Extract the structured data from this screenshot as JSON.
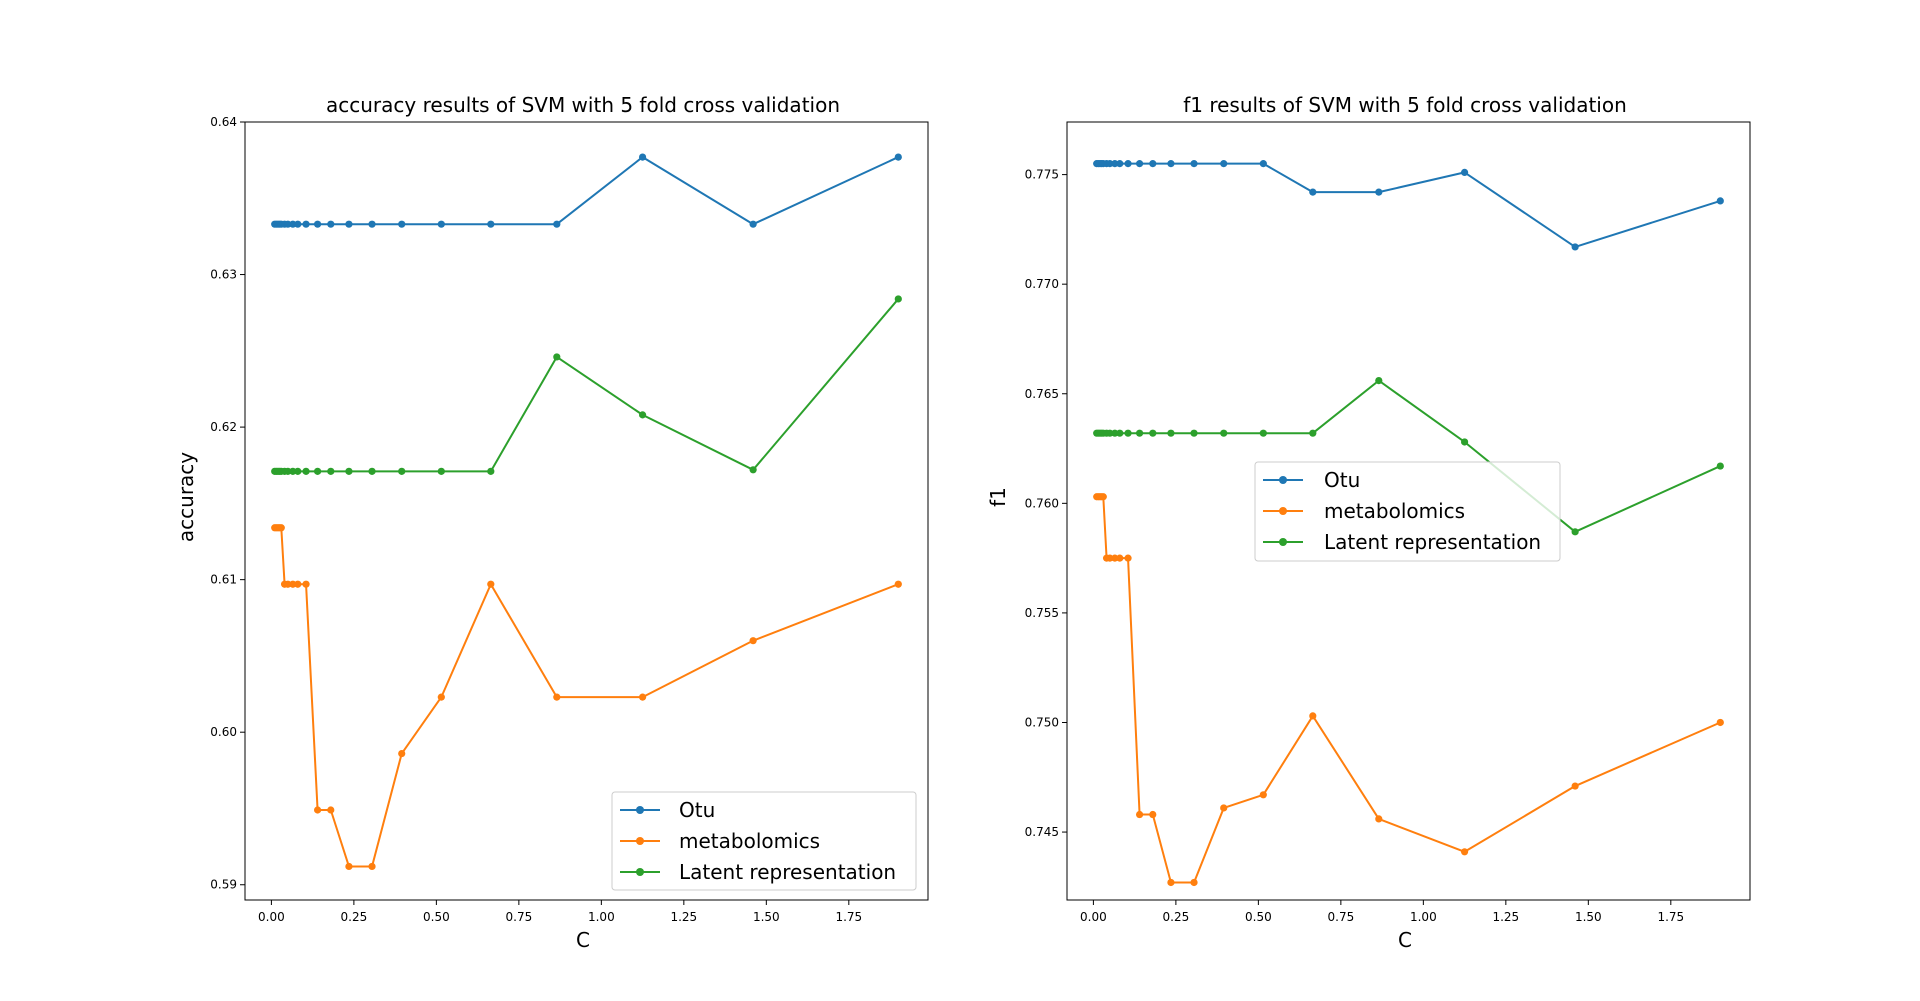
{
  "chart_data": [
    {
      "type": "line",
      "title": "accuracy results of SVM with 5 fold cross validation",
      "xlabel": "C",
      "ylabel": "accuracy",
      "xlim": [
        -0.08,
        1.99
      ],
      "ylim": [
        0.589,
        0.64
      ],
      "xticks": [
        0.0,
        0.25,
        0.5,
        0.75,
        1.0,
        1.25,
        1.5,
        1.75
      ],
      "xtick_labels": [
        "0.00",
        "0.25",
        "0.50",
        "0.75",
        "1.00",
        "1.25",
        "1.50",
        "1.75"
      ],
      "yticks": [
        0.59,
        0.6,
        0.61,
        0.62,
        0.63,
        0.64
      ],
      "ytick_labels": [
        "0.59",
        "0.60",
        "0.61",
        "0.62",
        "0.63",
        "0.64"
      ],
      "grid": false,
      "legend_position": "lower-right",
      "x": [
        0.01,
        0.015,
        0.02,
        0.025,
        0.03,
        0.04,
        0.05,
        0.065,
        0.08,
        0.105,
        0.14,
        0.18,
        0.235,
        0.305,
        0.395,
        0.515,
        0.665,
        0.865,
        1.125,
        1.46,
        1.9
      ],
      "series": [
        {
          "name": "Otu",
          "color": "#1f77b4",
          "values": [
            0.6333,
            0.6333,
            0.6333,
            0.6333,
            0.6333,
            0.6333,
            0.6333,
            0.6333,
            0.6333,
            0.6333,
            0.6333,
            0.6333,
            0.6333,
            0.6333,
            0.6333,
            0.6333,
            0.6333,
            0.6333,
            0.6377,
            0.6333,
            0.6377
          ]
        },
        {
          "name": "metabolomics",
          "color": "#ff7f0e",
          "values": [
            0.6134,
            0.6134,
            0.6134,
            0.6134,
            0.6134,
            0.6097,
            0.6097,
            0.6097,
            0.6097,
            0.6097,
            0.5949,
            0.5949,
            0.5912,
            0.5912,
            0.5986,
            0.6023,
            0.6097,
            0.6023,
            0.6023,
            0.606,
            0.6097
          ]
        },
        {
          "name": "Latent representation",
          "color": "#2ca02c",
          "values": [
            0.6171,
            0.6171,
            0.6171,
            0.6171,
            0.6171,
            0.6171,
            0.6171,
            0.6171,
            0.6171,
            0.6171,
            0.6171,
            0.6171,
            0.6171,
            0.6171,
            0.6171,
            0.6171,
            0.6171,
            0.6246,
            0.6208,
            0.6172,
            0.6284
          ]
        }
      ]
    },
    {
      "type": "line",
      "title": "f1 results of SVM with 5 fold cross validation",
      "xlabel": "C",
      "ylabel": "f1",
      "xlim": [
        -0.08,
        1.99
      ],
      "ylim": [
        0.7419,
        0.7774
      ],
      "xticks": [
        0.0,
        0.25,
        0.5,
        0.75,
        1.0,
        1.25,
        1.5,
        1.75
      ],
      "xtick_labels": [
        "0.00",
        "0.25",
        "0.50",
        "0.75",
        "1.00",
        "1.25",
        "1.50",
        "1.75"
      ],
      "yticks": [
        0.745,
        0.75,
        0.755,
        0.76,
        0.765,
        0.77,
        0.775
      ],
      "ytick_labels": [
        "0.745",
        "0.750",
        "0.755",
        "0.760",
        "0.765",
        "0.770",
        "0.775"
      ],
      "grid": false,
      "legend_position": "center",
      "x": [
        0.01,
        0.015,
        0.02,
        0.025,
        0.03,
        0.04,
        0.05,
        0.065,
        0.08,
        0.105,
        0.14,
        0.18,
        0.235,
        0.305,
        0.395,
        0.515,
        0.665,
        0.865,
        1.125,
        1.46,
        1.9
      ],
      "series": [
        {
          "name": "Otu",
          "color": "#1f77b4",
          "values": [
            0.7755,
            0.7755,
            0.7755,
            0.7755,
            0.7755,
            0.7755,
            0.7755,
            0.7755,
            0.7755,
            0.7755,
            0.7755,
            0.7755,
            0.7755,
            0.7755,
            0.7755,
            0.7755,
            0.7742,
            0.7742,
            0.7751,
            0.7717,
            0.7738
          ]
        },
        {
          "name": "metabolomics",
          "color": "#ff7f0e",
          "values": [
            0.7603,
            0.7603,
            0.7603,
            0.7603,
            0.7603,
            0.7575,
            0.7575,
            0.7575,
            0.7575,
            0.7575,
            0.7458,
            0.7458,
            0.7427,
            0.7427,
            0.7461,
            0.7467,
            0.7503,
            0.7456,
            0.7441,
            0.7471,
            0.75
          ]
        },
        {
          "name": "Latent representation",
          "color": "#2ca02c",
          "values": [
            0.7632,
            0.7632,
            0.7632,
            0.7632,
            0.7632,
            0.7632,
            0.7632,
            0.7632,
            0.7632,
            0.7632,
            0.7632,
            0.7632,
            0.7632,
            0.7632,
            0.7632,
            0.7632,
            0.7632,
            0.7656,
            0.7628,
            0.7587,
            0.7617
          ]
        }
      ]
    }
  ]
}
